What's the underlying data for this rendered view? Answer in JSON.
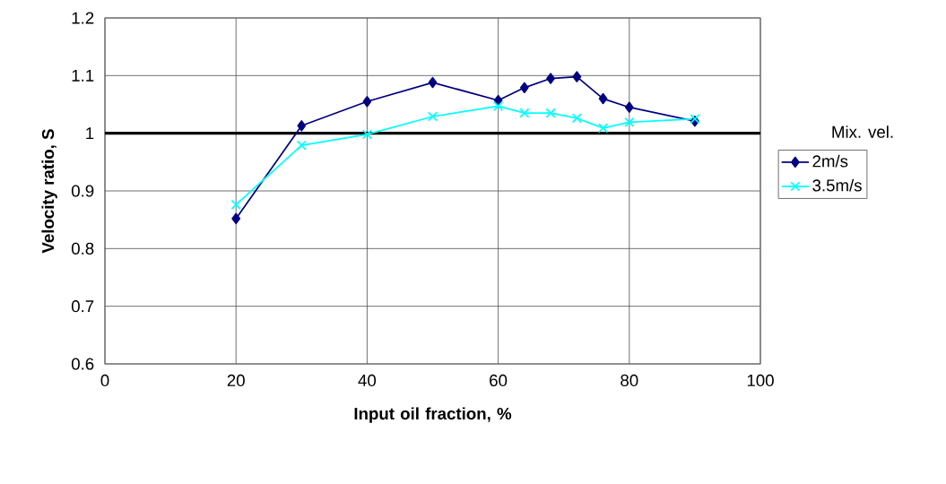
{
  "chart_data": {
    "type": "line",
    "xlabel": "Input oil fraction, %",
    "ylabel": "Velocity ratio, S",
    "legend_title": "Mix. vel.",
    "xlim": [
      0,
      100
    ],
    "xticks": [
      0,
      20,
      40,
      60,
      80,
      100
    ],
    "ylim": [
      0.6,
      1.2
    ],
    "yticks": [
      0.6,
      0.7,
      0.8,
      0.9,
      1,
      1.1,
      1.2
    ],
    "grid": true,
    "legend": "right",
    "line_style": "solid",
    "ref_lines": [
      {
        "axis": "y",
        "value": 1,
        "color": "#000000"
      }
    ],
    "series": [
      {
        "name": "2m/s",
        "color": "#000080",
        "marker": "diamond",
        "x": [
          20,
          30,
          40,
          50,
          60,
          64,
          68,
          72,
          76,
          80,
          90
        ],
        "values": [
          0.852,
          1.013,
          1.055,
          1.088,
          1.057,
          1.079,
          1.095,
          1.098,
          1.06,
          1.045,
          1.021
        ]
      },
      {
        "name": "3.5m/s",
        "color": "#00ffff",
        "marker": "cross",
        "x": [
          20,
          30,
          40,
          50,
          60,
          64,
          68,
          72,
          76,
          80,
          90
        ],
        "values": [
          0.876,
          0.979,
          0.998,
          1.029,
          1.047,
          1.035,
          1.035,
          1.026,
          1.009,
          1.019,
          1.025
        ]
      }
    ]
  }
}
